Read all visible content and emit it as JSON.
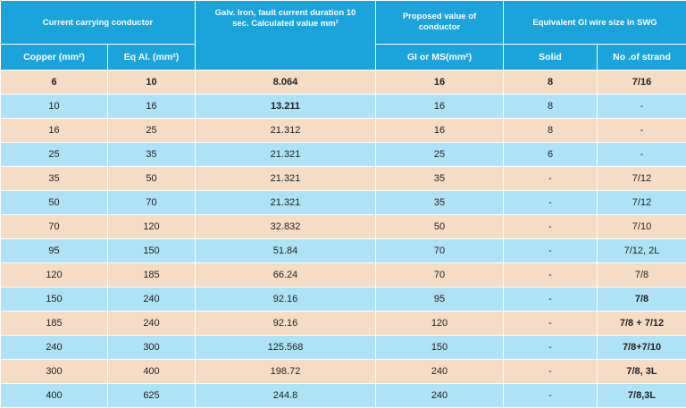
{
  "headers": {
    "group_current": "Current carrying conductor",
    "galv_iron": "Galv. Iron, fault current duration 10 sec. Calculated value mm²",
    "proposed": "Proposed value of conductor",
    "equivalent_gi": "Equivalent GI wire size in SWG",
    "copper": "Copper (mm²)",
    "eq_al": "Eq Al. (mm²)",
    "gi_ms": "GI or MS(mm²)",
    "solid": "Solid",
    "strand": "No .of strand"
  },
  "rows": [
    {
      "copper": "6",
      "eq_al": "10",
      "galv": "8.064",
      "proposed": "16",
      "solid": "8",
      "strand": "7/16"
    },
    {
      "copper": "10",
      "eq_al": "16",
      "galv": "13.211",
      "proposed": "16",
      "solid": "8",
      "strand": "-"
    },
    {
      "copper": "16",
      "eq_al": "25",
      "galv": "21.312",
      "proposed": "16",
      "solid": "8",
      "strand": "-"
    },
    {
      "copper": "25",
      "eq_al": "35",
      "galv": "21.321",
      "proposed": "25",
      "solid": "6",
      "strand": "-"
    },
    {
      "copper": "35",
      "eq_al": "50",
      "galv": "21.321",
      "proposed": "35",
      "solid": "-",
      "strand": "7/12"
    },
    {
      "copper": "50",
      "eq_al": "70",
      "galv": "21.321",
      "proposed": "35",
      "solid": "-",
      "strand": "7/12"
    },
    {
      "copper": "70",
      "eq_al": "120",
      "galv": "32.832",
      "proposed": "50",
      "solid": "-",
      "strand": "7/10"
    },
    {
      "copper": "95",
      "eq_al": "150",
      "galv": "51.84",
      "proposed": "70",
      "solid": "-",
      "strand": "7/12, 2L"
    },
    {
      "copper": "120",
      "eq_al": "185",
      "galv": "66.24",
      "proposed": "70",
      "solid": "-",
      "strand": "7/8"
    },
    {
      "copper": "150",
      "eq_al": "240",
      "galv": "92.16",
      "proposed": "95",
      "solid": "-",
      "strand": "7/8"
    },
    {
      "copper": "185",
      "eq_al": "240",
      "galv": "92.16",
      "proposed": "120",
      "solid": "-",
      "strand": "7/8 + 7/12"
    },
    {
      "copper": "240",
      "eq_al": "300",
      "galv": "125.568",
      "proposed": "150",
      "solid": "-",
      "strand": "7/8+7/10"
    },
    {
      "copper": "300",
      "eq_al": "400",
      "galv": "198.72",
      "proposed": "240",
      "solid": "-",
      "strand": "7/8, 3L"
    },
    {
      "copper": "400",
      "eq_al": "625",
      "galv": "244.8",
      "proposed": "240",
      "solid": "-",
      "strand": "7/8,3L"
    }
  ],
  "colors": {
    "header": "#1ba3dc",
    "row_peach": "#f6dcc4",
    "row_blue": "#aee2f7"
  }
}
